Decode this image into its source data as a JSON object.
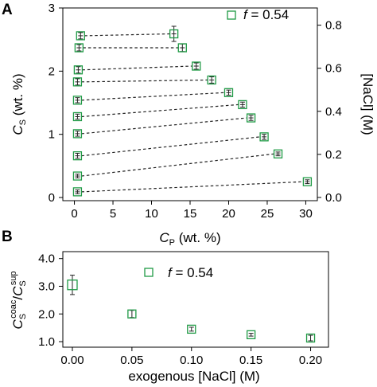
{
  "chart_data": [
    {
      "panel": "A",
      "type": "scatter",
      "xlabel": {
        "main": "C",
        "sub": "P",
        "rest": " (wt. %)"
      },
      "ylabel": {
        "main": "C",
        "sub": "S",
        "rest": " (wt. %)"
      },
      "y2label": "[NaCl] (M)",
      "xlim": [
        -1.5,
        31.5
      ],
      "ylim": [
        -0.05,
        3.0
      ],
      "y2lim": [
        -0.015,
        0.88
      ],
      "x_ticks": [
        0,
        5,
        10,
        15,
        20,
        25,
        30
      ],
      "y_ticks": [
        0,
        1,
        2,
        3
      ],
      "y2_ticks": [
        0.0,
        0.2,
        0.4,
        0.6,
        0.8
      ],
      "legend": {
        "symbol": "square",
        "text_f": "f",
        "text_val": " = 0.54",
        "position": "top-right"
      },
      "tie_lines": [
        {
          "sup": [
            0.4,
            0.09
          ],
          "coac": [
            30.2,
            0.25
          ],
          "sup_err": 0.03,
          "coac_err": 0.03
        },
        {
          "sup": [
            0.4,
            0.34
          ],
          "coac": [
            26.4,
            0.69
          ],
          "sup_err": 0.03,
          "coac_err": 0.03
        },
        {
          "sup": [
            0.4,
            0.66
          ],
          "coac": [
            24.6,
            0.96
          ],
          "sup_err": 0.04,
          "coac_err": 0.04
        },
        {
          "sup": [
            0.4,
            1.01
          ],
          "coac": [
            22.9,
            1.26
          ],
          "sup_err": 0.04,
          "coac_err": 0.04
        },
        {
          "sup": [
            0.4,
            1.28
          ],
          "coac": [
            21.8,
            1.47
          ],
          "sup_err": 0.04,
          "coac_err": 0.04
        },
        {
          "sup": [
            0.4,
            1.54
          ],
          "coac": [
            20.0,
            1.66
          ],
          "sup_err": 0.04,
          "coac_err": 0.04
        },
        {
          "sup": [
            0.4,
            1.83
          ],
          "coac": [
            17.8,
            1.86
          ],
          "sup_err": 0.05,
          "coac_err": 0.05
        },
        {
          "sup": [
            0.5,
            2.02
          ],
          "coac": [
            15.8,
            2.08
          ],
          "sup_err": 0.05,
          "coac_err": 0.05
        },
        {
          "sup": [
            0.6,
            2.37
          ],
          "coac": [
            14.0,
            2.37
          ],
          "sup_err": 0.05,
          "coac_err": 0.06
        },
        {
          "sup": [
            0.8,
            2.56
          ],
          "coac": [
            12.9,
            2.59
          ],
          "sup_err": 0.05,
          "coac_err": 0.12
        }
      ]
    },
    {
      "panel": "B",
      "type": "scatter",
      "xlabel": "exogenous [NaCl] (M)",
      "ylabel": {
        "main1": "C",
        "sub1": "S",
        "sup1": "coac",
        "slash": "/",
        "main2": "C",
        "sub2": "S",
        "sup2": "sup"
      },
      "xlim": [
        -0.008,
        0.215
      ],
      "ylim": [
        0.8,
        4.25
      ],
      "x_ticks": [
        "0.00",
        "0.05",
        "0.10",
        "0.15",
        "0.20"
      ],
      "x_tick_values": [
        0.0,
        0.05,
        0.1,
        0.15,
        0.2
      ],
      "y_ticks": [
        "1.0",
        "2.0",
        "3.0",
        "4.0"
      ],
      "y_tick_values": [
        1.0,
        2.0,
        3.0,
        4.0
      ],
      "legend": {
        "symbol": "square",
        "text_f": "f",
        "text_val": " = 0.54",
        "position": "top-center"
      },
      "points": [
        {
          "x": 0.0,
          "y": 3.05,
          "err": 0.35
        },
        {
          "x": 0.05,
          "y": 2.0,
          "err": 0.13
        },
        {
          "x": 0.1,
          "y": 1.45,
          "err": 0.07
        },
        {
          "x": 0.15,
          "y": 1.25,
          "err": 0.05
        },
        {
          "x": 0.2,
          "y": 1.13,
          "err": 0.1
        }
      ]
    }
  ]
}
